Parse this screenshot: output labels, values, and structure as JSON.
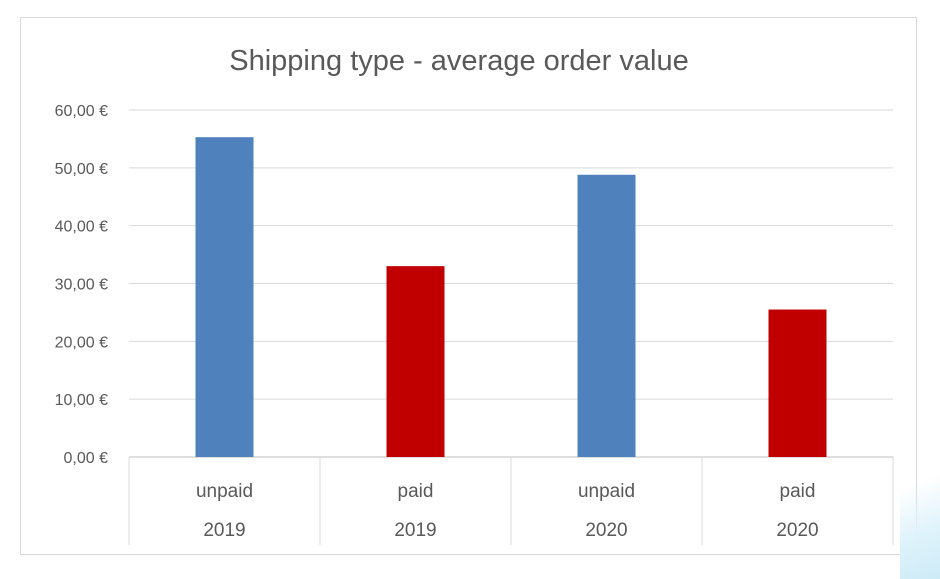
{
  "chart_data": {
    "type": "bar",
    "title": "Shipping type - average order value",
    "xlabel": "",
    "ylabel": "",
    "ylim": [
      0,
      60
    ],
    "y_ticks": [
      "0,00 €",
      "10,00 €",
      "20,00 €",
      "30,00 €",
      "40,00 €",
      "50,00 €",
      "60,00 €"
    ],
    "categories": [
      {
        "label": "unpaid",
        "group": "2019"
      },
      {
        "label": "paid",
        "group": "2019"
      },
      {
        "label": "unpaid",
        "group": "2020"
      },
      {
        "label": "paid",
        "group": "2020"
      }
    ],
    "values": [
      55.3,
      33.0,
      48.8,
      25.5
    ],
    "bar_colors": [
      "#4f81bd",
      "#c00000",
      "#4f81bd",
      "#c00000"
    ],
    "grid": true,
    "legend": "none"
  }
}
